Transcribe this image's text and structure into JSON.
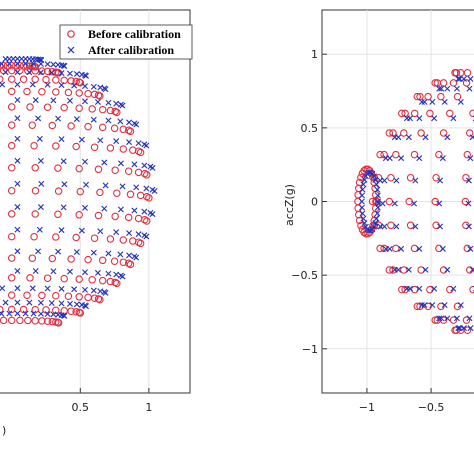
{
  "chart_data": [
    {
      "type": "scatter",
      "panel": "left",
      "title": "",
      "xlabel": ")",
      "ylabel": "",
      "xlim": [
        -0.1,
        1.3
      ],
      "ylim": [
        -1.35,
        1.3
      ],
      "x_ticks": [
        0.5,
        1
      ],
      "x_tick_labels": [
        "0.5",
        "1"
      ],
      "y_ticks": [],
      "grid": true,
      "legend": {
        "placement": "top-right",
        "entries": [
          {
            "label": "Before calibration",
            "marker": "circle",
            "color": "#e03040"
          },
          {
            "label": "After calibration",
            "marker": "x",
            "color": "#2233bb"
          }
        ]
      },
      "series": [
        {
          "name": "Before calibration",
          "marker": "circle",
          "color": "#e03040",
          "shape": "hemisphere-grid",
          "radius": 1.0,
          "center": [
            0.0,
            0.0
          ]
        },
        {
          "name": "After calibration",
          "marker": "x",
          "color": "#2233bb",
          "shape": "hemisphere-grid",
          "radius": 1.0,
          "center": [
            0.02,
            0.02
          ]
        }
      ]
    },
    {
      "type": "scatter",
      "panel": "right",
      "title": "",
      "xlabel": "",
      "ylabel": "accZ(g)",
      "xlim": [
        -1.35,
        -0.15
      ],
      "ylim": [
        -1.3,
        1.3
      ],
      "x_ticks": [
        -1,
        -0.5
      ],
      "x_tick_labels": [
        "−1",
        "−0.5"
      ],
      "y_ticks": [
        -1,
        -0.5,
        0,
        0.5,
        1
      ],
      "y_tick_labels": [
        "−1",
        "−0.5",
        "0",
        "0.5",
        "1"
      ],
      "grid": true,
      "series": [
        {
          "name": "Before calibration",
          "marker": "circle",
          "color": "#e03040",
          "shape": "sphere-front-view",
          "radius": 0.93
        },
        {
          "name": "After calibration",
          "marker": "x",
          "color": "#2233bb",
          "shape": "sphere-front-view",
          "radius": 0.9
        }
      ]
    }
  ]
}
